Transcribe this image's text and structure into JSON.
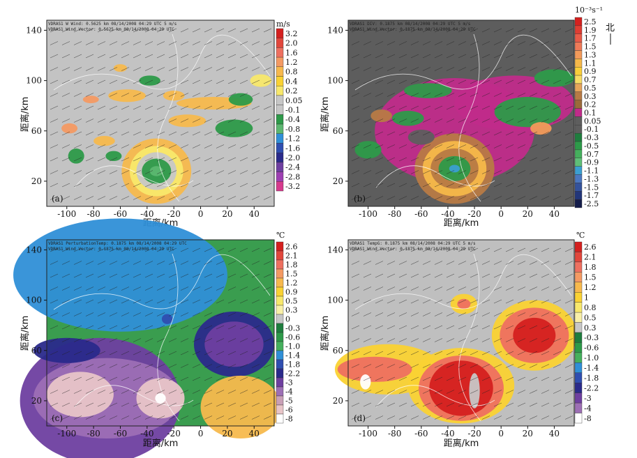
{
  "chart_data": [
    {
      "type": "heatmap",
      "panel_label": "(a)",
      "header_lines": [
        "VDRAS1 W Wind: 0.5625 km 08/14/2008 04:29 UTC 5 m/s",
        "VDRAS1 Wind Vector: 0.5625 km 08/14/2008 04:29 UTC"
      ],
      "xlabel": "距离/km",
      "ylabel": "距离/km",
      "xlim": [
        -115,
        55
      ],
      "ylim": [
        0,
        148
      ],
      "xticks": [
        -100,
        -80,
        -60,
        -40,
        -20,
        0,
        20,
        40
      ],
      "yticks": [
        20,
        60,
        100,
        140
      ],
      "colorbar": {
        "unit": "m/s",
        "labels": [
          "3.2",
          "2.0",
          "1.6",
          "1.2",
          "0.8",
          "0.4",
          "0.2",
          "0.05",
          "-0.1",
          "-0.4",
          "-0.8",
          "-1.2",
          "-1.6",
          "-2.0",
          "-2.4",
          "-2.8",
          "-3.2"
        ],
        "colors": [
          "#d4201f",
          "#e1473c",
          "#ee7060",
          "#f49a63",
          "#f7b94d",
          "#fad233",
          "#f8e86b",
          "#c7c7c7",
          "#c7c7c7",
          "#2d9a49",
          "#5cb770",
          "#2f8fd7",
          "#2f4eb0",
          "#2a2a8b",
          "#6e3fa0",
          "#9d3fb2",
          "#d63a8d"
        ]
      },
      "background": "#c3c3c3"
    },
    {
      "type": "heatmap",
      "panel_label": "(b)",
      "header_lines": [
        "VDRAS1 DIV: 0.1875 km 08/14/2008 04:29 UTC 5 m/s",
        "VDRAS1 Wind Vector: 0.1875 km 08/14/2008 04:29 UTC"
      ],
      "xlabel": "距离/km",
      "ylabel": "距离/km",
      "xlim": [
        -115,
        55
      ],
      "ylim": [
        0,
        148
      ],
      "xticks": [
        -100,
        -80,
        -60,
        -40,
        -20,
        0,
        20,
        40
      ],
      "yticks": [
        20,
        60,
        100,
        140
      ],
      "colorbar": {
        "unit": "10⁻³s⁻¹",
        "north_label": "北",
        "labels": [
          "2.5",
          "1.9",
          "1.7",
          "1.5",
          "1.3",
          "1.1",
          "0.9",
          "0.7",
          "0.5",
          "0.3",
          "0.2",
          "0.1",
          "0.05",
          "-0.1",
          "-0.3",
          "-0.5",
          "-0.7",
          "-0.9",
          "-1.1",
          "-1.3",
          "-1.5",
          "-1.7",
          "-2.5"
        ],
        "colors": [
          "#d4201f",
          "#de3d33",
          "#e85b48",
          "#ee7a58",
          "#f29a5a",
          "#f6b84a",
          "#f9cf3a",
          "#f8dc64",
          "#e6a45a",
          "#b77a45",
          "#9a6a3a",
          "#c02b8a",
          "#5e5e5e",
          "#5e5e5e",
          "#1e7d3e",
          "#2d9a49",
          "#45b05d",
          "#5fbf78",
          "#3b9fd1",
          "#4b77c0",
          "#34529c",
          "#22367a",
          "#141c4a"
        ]
      },
      "background": "#5d5d5d"
    },
    {
      "type": "heatmap",
      "panel_label": "(c)",
      "header_lines": [
        "VDRAS1 PerturbationTemp: 0.1875 km 08/14/2008 04:29 UTC",
        "VDRAS1 Wind Vector: 0.1875 km 08/14/2008 04:29 UTC"
      ],
      "xlabel": "距离/km",
      "ylabel": "距离/km",
      "xlim": [
        -115,
        55
      ],
      "ylim": [
        0,
        148
      ],
      "xticks": [
        -100,
        -80,
        -60,
        -40,
        -20,
        0,
        20,
        40
      ],
      "yticks": [
        20,
        60,
        100,
        140
      ],
      "colorbar": {
        "unit": "℃",
        "labels": [
          "2.6",
          "2.1",
          "1.8",
          "1.5",
          "1.2",
          "0.9",
          "0.5",
          "0.3",
          "0",
          "-0.3",
          "-0.6",
          "-1.0",
          "-1.4",
          "-1.8",
          "-2.2",
          "-3",
          "-4",
          "-5",
          "-6",
          "-8"
        ],
        "colors": [
          "#d4201f",
          "#e1473c",
          "#ee7060",
          "#f49a63",
          "#f7b94d",
          "#fad233",
          "#f8e86b",
          "#f9f0a8",
          "#c7c7c7",
          "#1e7d3e",
          "#2d9a49",
          "#45b05d",
          "#2f8fd7",
          "#2f4eb0",
          "#2a2a8b",
          "#6e3fa0",
          "#9d6fb5",
          "#c9a0b7",
          "#e8c5c8",
          "#ffffff"
        ]
      },
      "background": "#3a9d4f"
    },
    {
      "type": "heatmap",
      "panel_label": "(d)",
      "header_lines": [
        "VDRAS1 TempG: 0.1875 km 08/14/2008 04:29 UTC 5 m/s",
        "VDRAS1 Wind Vector: 0.1875 km 08/14/2008 04:29 UTC"
      ],
      "xlabel": "距离/km",
      "ylabel": "距离/km",
      "xlim": [
        -115,
        55
      ],
      "ylim": [
        0,
        148
      ],
      "xticks": [
        -100,
        -80,
        -60,
        -40,
        -20,
        0,
        20,
        40
      ],
      "yticks": [
        20,
        60,
        100,
        140
      ],
      "colorbar": {
        "unit": "℃",
        "labels": [
          "2.6",
          "2.1",
          "1.8",
          "1.5",
          "1.2",
          "1",
          "0.8",
          "0.5",
          "0.3",
          "-0.3",
          "-0.6",
          "-1.0",
          "-1.4",
          "-1.8",
          "-2.2",
          "-3",
          "-4",
          "-8"
        ],
        "colors": [
          "#d4201f",
          "#e1473c",
          "#ee7060",
          "#f49a63",
          "#f7b94d",
          "#fad233",
          "#f8e86b",
          "#f9f0a8",
          "#c7c7c7",
          "#1e7d3e",
          "#2d9a49",
          "#45b05d",
          "#2f8fd7",
          "#2f4eb0",
          "#2a2a8b",
          "#6e3fa0",
          "#9d6fb5",
          "#ffffff"
        ]
      },
      "background": "#bfbfbf"
    }
  ]
}
